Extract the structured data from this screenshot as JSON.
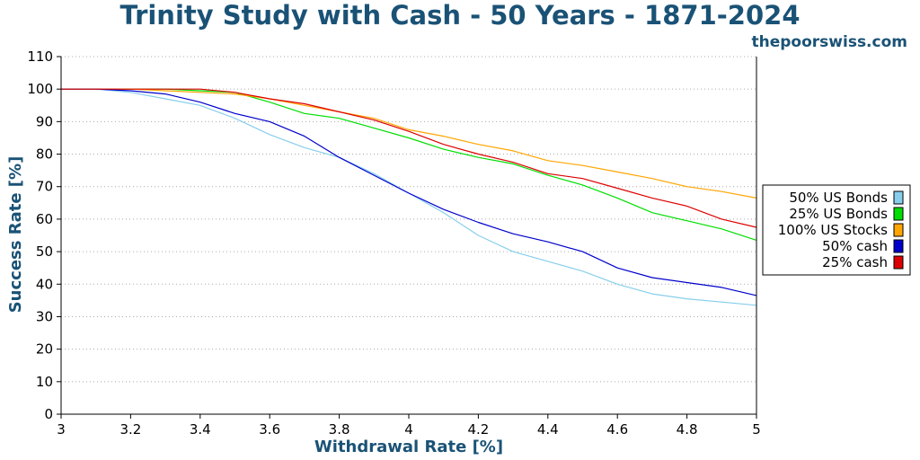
{
  "chart_data": {
    "type": "line",
    "title": "Trinity Study with Cash - 50 Years - 1871-2024",
    "source": "thepoorswiss.com",
    "xlabel": "Withdrawal Rate [%]",
    "ylabel": "Success Rate [%]",
    "xlim": [
      3,
      5
    ],
    "ylim": [
      0,
      110
    ],
    "x_ticks": [
      "3",
      "3.2",
      "3.4",
      "3.6",
      "3.8",
      "4",
      "4.2",
      "4.4",
      "4.6",
      "4.8",
      "5"
    ],
    "y_ticks": [
      "0",
      "10",
      "20",
      "30",
      "40",
      "50",
      "60",
      "70",
      "80",
      "90",
      "100",
      "110"
    ],
    "grid": "horizontal-dotted",
    "legend_position": "right",
    "x": [
      3.0,
      3.1,
      3.2,
      3.3,
      3.4,
      3.5,
      3.6,
      3.7,
      3.8,
      3.9,
      4.0,
      4.1,
      4.2,
      4.3,
      4.4,
      4.5,
      4.6,
      4.7,
      4.8,
      4.9,
      5.0
    ],
    "series": [
      {
        "name": "50% US Bonds",
        "color": "#87ceeb",
        "values": [
          100,
          100,
          99,
          97,
          95,
          91,
          86,
          82,
          79,
          74,
          68,
          62,
          55,
          50,
          47,
          44,
          40,
          37,
          35.5,
          34.5,
          33.5
        ]
      },
      {
        "name": "25% US Bonds",
        "color": "#00dd00",
        "values": [
          100,
          100,
          100,
          100,
          99.5,
          99,
          96,
          92.5,
          91,
          88,
          85,
          81.5,
          79,
          77,
          73.5,
          70.5,
          66.5,
          62,
          59.5,
          57,
          53.5
        ]
      },
      {
        "name": "100% US Stocks",
        "color": "#ffa500",
        "values": [
          100,
          100,
          100,
          99.5,
          99,
          98.5,
          97,
          95,
          93,
          91,
          87.5,
          85.5,
          83,
          81,
          78,
          76.5,
          74.5,
          72.5,
          70,
          68.5,
          66.5
        ]
      },
      {
        "name": "50% cash",
        "color": "#0000cc",
        "values": [
          100,
          100,
          99.5,
          98.5,
          96,
          92.5,
          90,
          85.5,
          79,
          73.5,
          68,
          63,
          59,
          55.5,
          53,
          50,
          45,
          42,
          40.5,
          39,
          36.5
        ]
      },
      {
        "name": "25% cash",
        "color": "#dd0000",
        "values": [
          100,
          100,
          100,
          100,
          100,
          99,
          97,
          95.5,
          93,
          90.5,
          87,
          83,
          80,
          77.5,
          74,
          72.5,
          69.5,
          66.5,
          64,
          60,
          57.5
        ]
      }
    ]
  }
}
